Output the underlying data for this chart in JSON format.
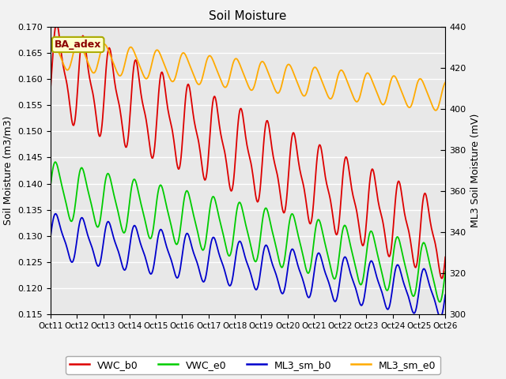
{
  "title": "Soil Moisture",
  "ylabel_left": "Soil Moisture (m3/m3)",
  "ylabel_right": "ML3 Soil Moisture (mV)",
  "ylim_left": [
    0.115,
    0.17
  ],
  "ylim_right": [
    300,
    440
  ],
  "yticks_left": [
    0.115,
    0.12,
    0.125,
    0.13,
    0.135,
    0.14,
    0.145,
    0.15,
    0.155,
    0.16,
    0.165,
    0.17
  ],
  "yticks_right": [
    300,
    320,
    340,
    360,
    380,
    400,
    420,
    440
  ],
  "xtick_labels": [
    "Oct 11",
    "Oct 12",
    "Oct 13",
    "Oct 14",
    "Oct 15",
    "Oct 16",
    "Oct 17",
    "Oct 18",
    "Oct 19",
    "Oct 20",
    "Oct 21",
    "Oct 22",
    "Oct 23",
    "Oct 24",
    "Oct 25",
    "Oct 26"
  ],
  "annotation": "BA_adex",
  "colors": {
    "VWC_b0": "#dd0000",
    "VWC_e0": "#00cc00",
    "ML3_sm_b0": "#0000cc",
    "ML3_sm_e0": "#ffaa00"
  },
  "fig_bg": "#f2f2f2",
  "plot_bg": "#e8e8e8",
  "grid_color": "#ffffff",
  "title_fontsize": 11,
  "label_fontsize": 9,
  "tick_fontsize": 8,
  "xtick_fontsize": 7.5,
  "legend_fontsize": 9
}
